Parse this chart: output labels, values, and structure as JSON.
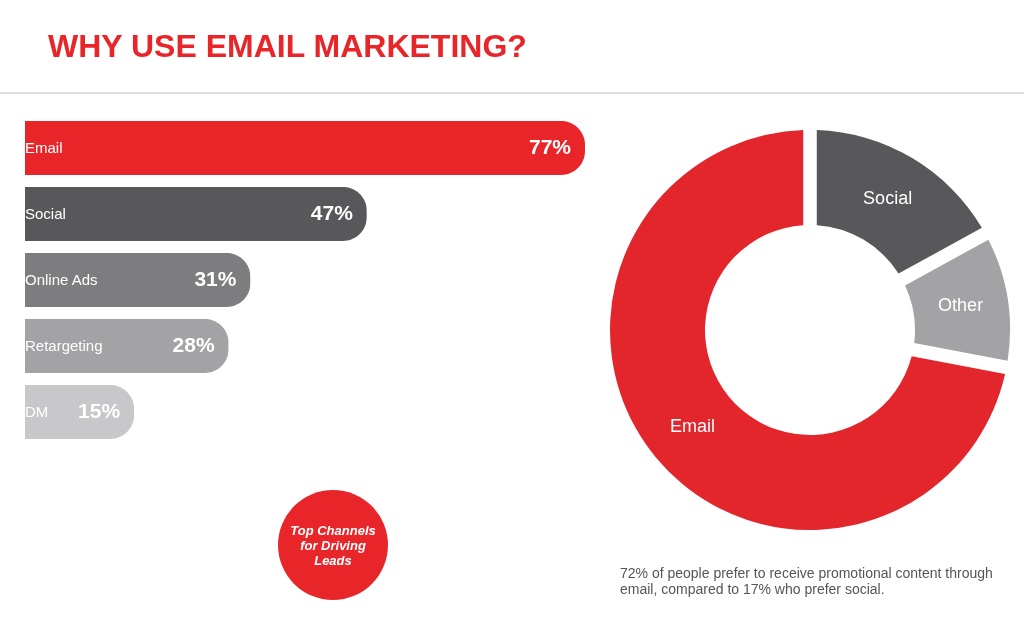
{
  "chart_data": [
    {
      "type": "bar",
      "orientation": "horizontal",
      "title": "WHY USE EMAIL MARKETING?",
      "categories": [
        "Email",
        "Social",
        "Online Ads",
        "Retargeting",
        "DM"
      ],
      "values": [
        77,
        47,
        31,
        28,
        15
      ],
      "colors": [
        "#e8262a",
        "#58585a",
        "#7d7d7f",
        "#a3a3a5",
        "#c8c8ca"
      ],
      "value_labels": [
        "77%",
        "47%",
        "31%",
        "28%",
        "15%"
      ],
      "annotations": [
        "Top Channels for Driving Leads"
      ]
    },
    {
      "type": "donut",
      "categories": [
        "Social",
        "Other",
        "Email"
      ],
      "values": [
        17,
        11,
        72
      ],
      "colors": [
        "#58585a",
        "#a3a3a5",
        "#e3262b"
      ],
      "annotations": [
        "72% of people prefer to receive promotional content through email, compared to 17% who prefer social."
      ]
    }
  ]
}
